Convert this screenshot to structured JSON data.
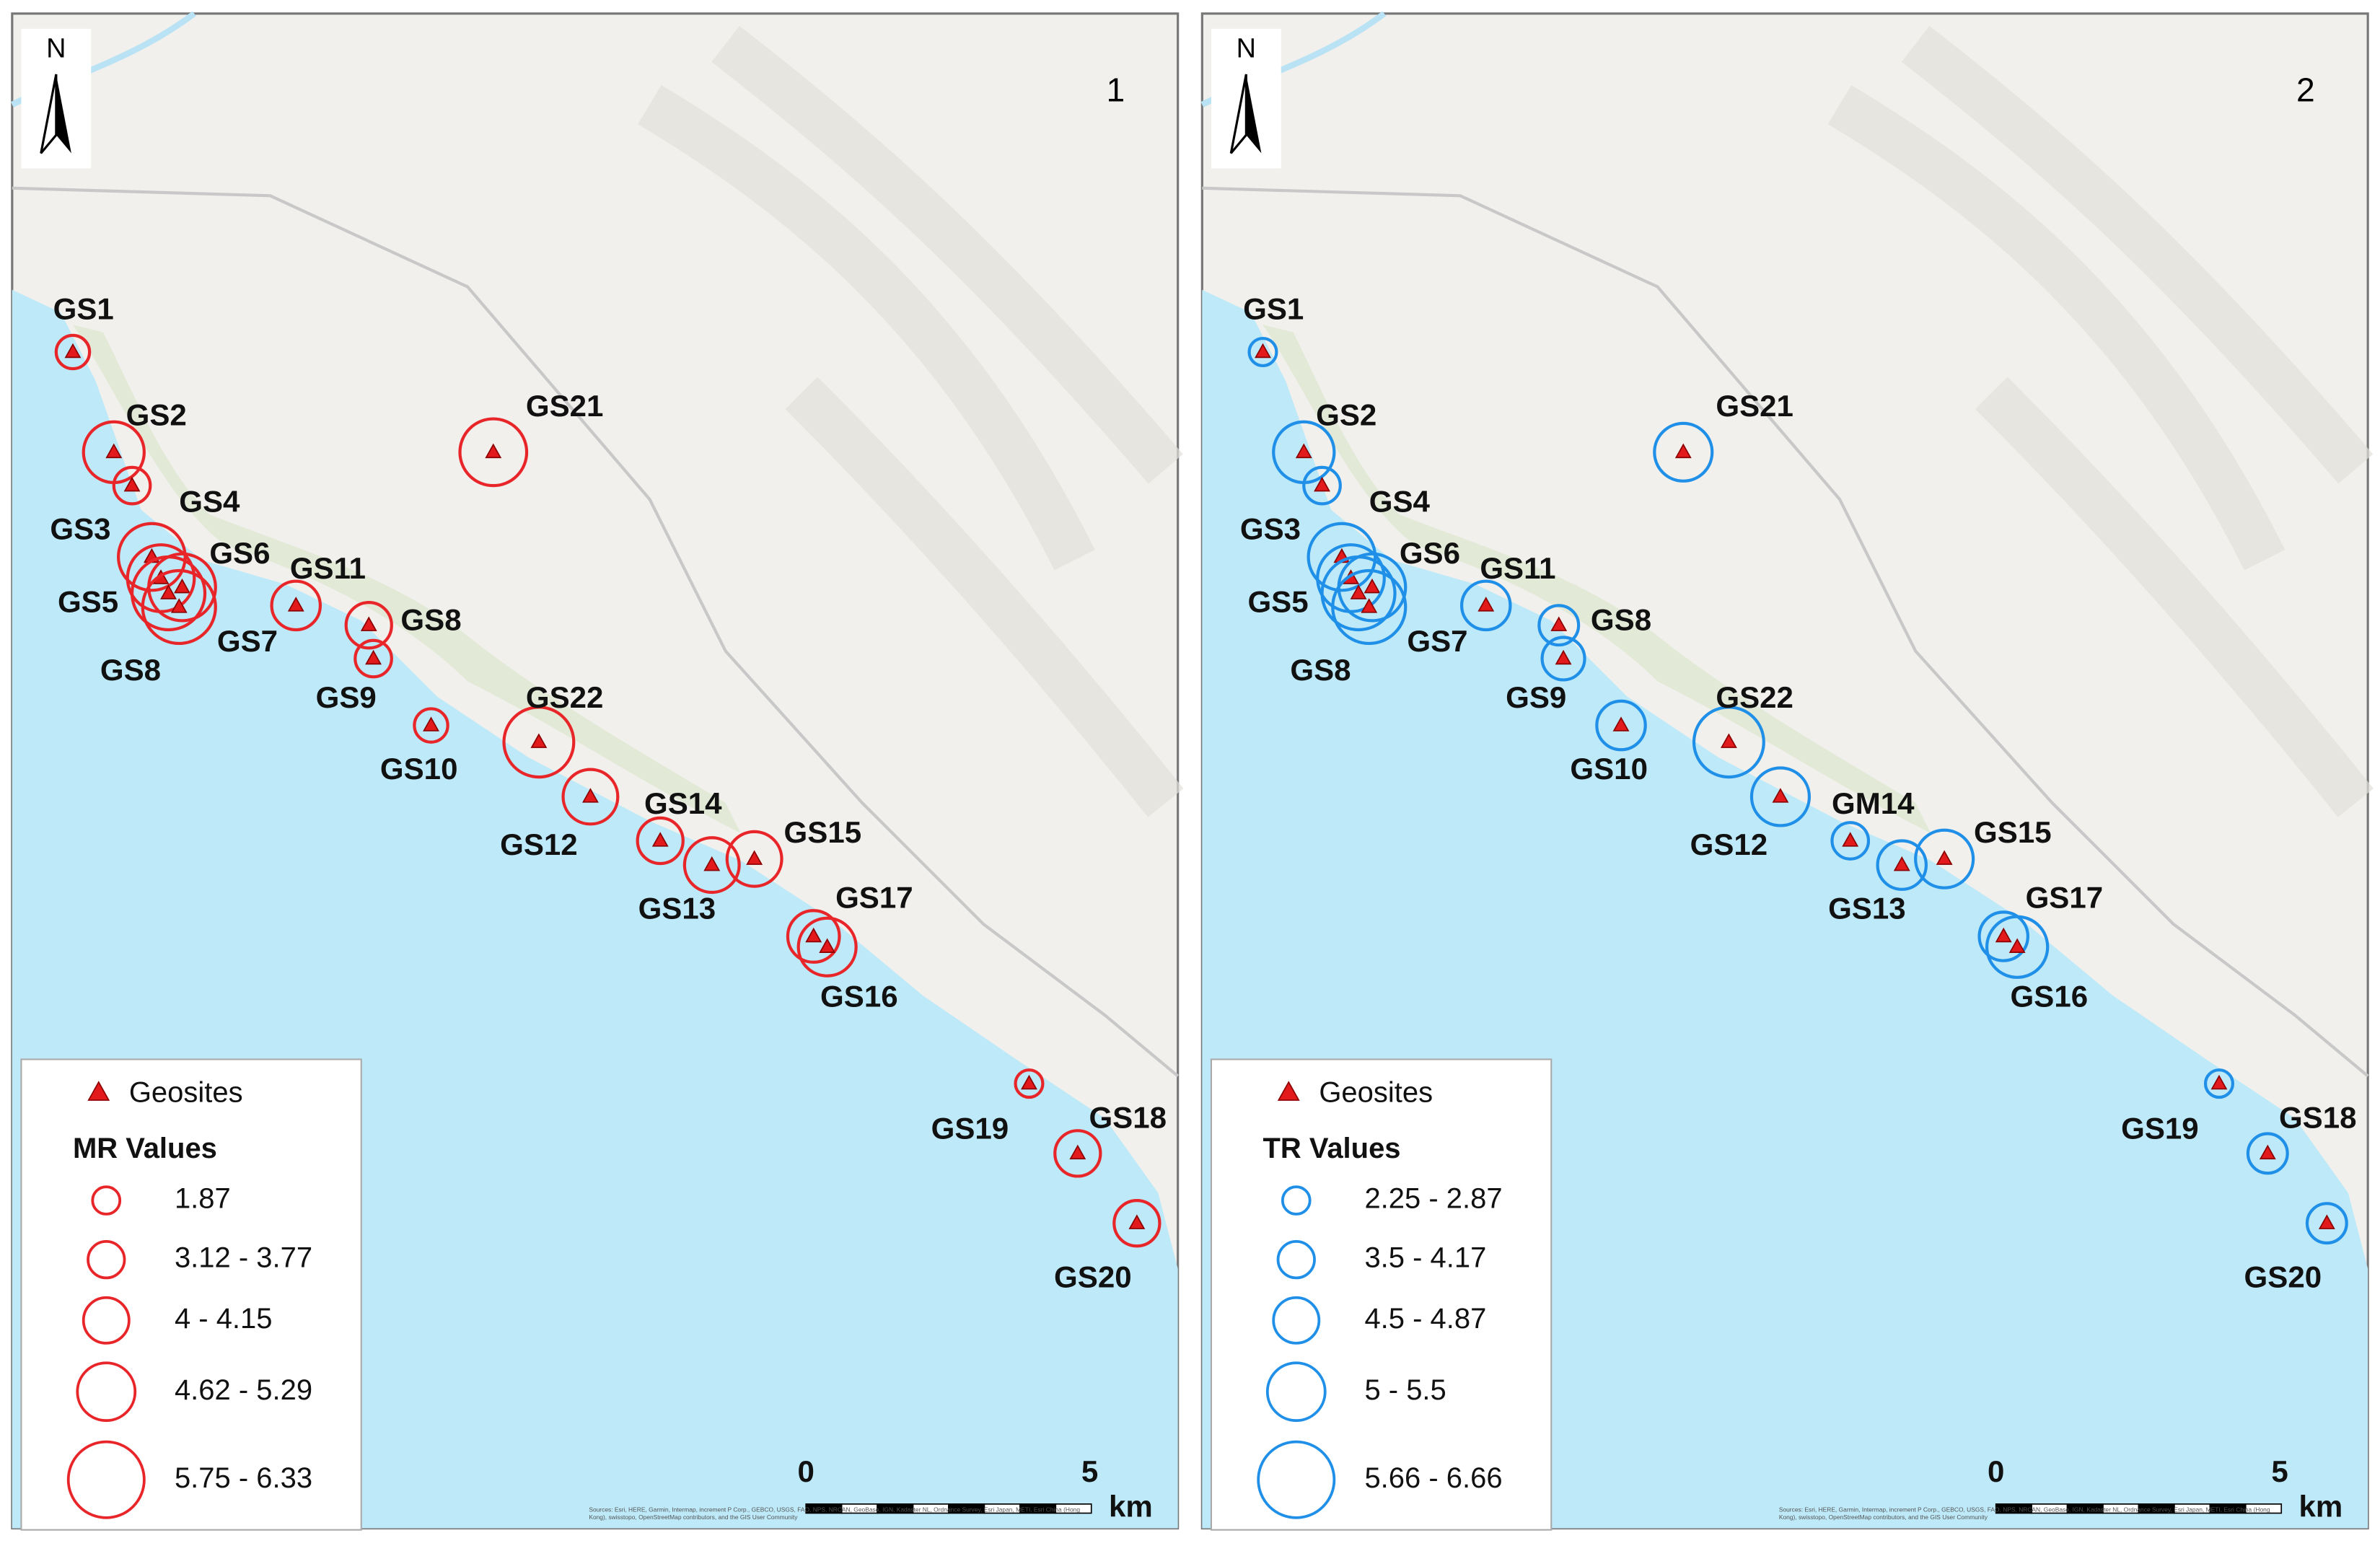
{
  "panels": [
    {
      "number": "1",
      "north": "N",
      "sites": [
        "GS1",
        "GS2",
        "GS4",
        "GS3",
        "GS6",
        "GS5",
        "GS11",
        "GS7",
        "GS8",
        "GS8",
        "GS9",
        "GS22",
        "GS10",
        "GS12",
        "GS14",
        "GS13",
        "GS15",
        "GS17",
        "GS16",
        "GS21",
        "GS19",
        "GS18",
        "GS20"
      ],
      "legend": {
        "marker": "Geosites",
        "title": "MR Values",
        "classes": [
          "1.87",
          "3.12 - 3.77",
          "4 - 4.15",
          "4.62 - 5.29",
          "5.75 - 6.33"
        ]
      },
      "scale": {
        "start": "0",
        "end": "5",
        "unit": "km"
      },
      "attribution": "Sources: Esri, HERE, Garmin, Intermap, increment P Corp., GEBCO, USGS, FAO, NPS, NRCAN, GeoBase, IGN, Kadaster NL, Ordnance Survey, Esri Japan, METI, Esri China (Hong Kong), swisstopo, OpenStreetMap contributors, and the GIS User Community"
    },
    {
      "number": "2",
      "north": "N",
      "sites": [
        "GS1",
        "GS2",
        "GS4",
        "GS3",
        "GS6",
        "GS5",
        "GS11",
        "GS7",
        "GS8",
        "GS8",
        "GS9",
        "GS22",
        "GS10",
        "GS12",
        "GM14",
        "GS13",
        "GS15",
        "GS17",
        "GS16",
        "GS21",
        "GS19",
        "GS18",
        "GS20"
      ],
      "legend": {
        "marker": "Geosites",
        "title": "TR Values",
        "classes": [
          "2.25 - 2.87",
          "3.5 - 4.17",
          "4.5 - 4.87",
          "5 - 5.5",
          "5.66 - 6.66"
        ]
      },
      "scale": {
        "start": "0",
        "end": "5",
        "unit": "km"
      },
      "attribution": "Sources: Esri, HERE, Garmin, Intermap, increment P Corp., GEBCO, USGS, FAO, NPS, NRCAN, GeoBase, IGN, Kadaster NL, Ordnance Survey, Esri Japan, METI, Esri China (Hong Kong), swisstopo, OpenStreetMap contributors, and the GIS User Community"
    }
  ]
}
